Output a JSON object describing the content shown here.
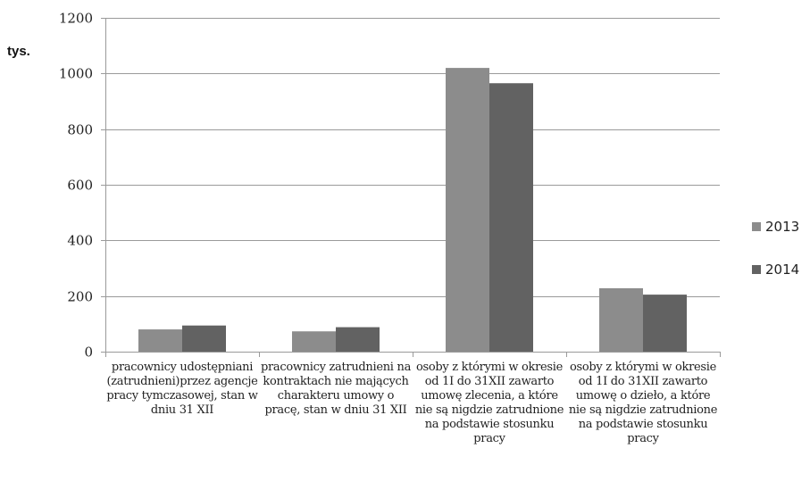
{
  "chart_data": {
    "type": "bar",
    "unit_label": "tys.",
    "categories": [
      "pracownicy udostępniani (zatrudnieni)przez agencje pracy tymczasowej, stan w dniu 31 XII",
      "pracownicy zatrudnieni na kontraktach nie mających charakteru umowy o pracę, stan w dniu 31 XII",
      "osoby z którymi w okresie od 1I do 31XII zawarto umowę zlecenia, a które nie są nigdzie zatrudnione na podstawie stosunku pracy",
      "osoby z którymi w okresie od 1I do 31XII zawarto umowę o dzieło, a które nie są nigdzie zatrudnione na podstawie stosunku pracy"
    ],
    "series": [
      {
        "name": "2013",
        "color": "#8c8c8c",
        "values": [
          80,
          73,
          1020,
          228
        ]
      },
      {
        "name": "2014",
        "color": "#626262",
        "values": [
          94,
          88,
          965,
          205
        ]
      }
    ],
    "ylim": [
      0,
      1200
    ],
    "yticks": [
      0,
      200,
      400,
      600,
      800,
      1000,
      1200
    ],
    "grid": true,
    "legend_position": "right"
  }
}
